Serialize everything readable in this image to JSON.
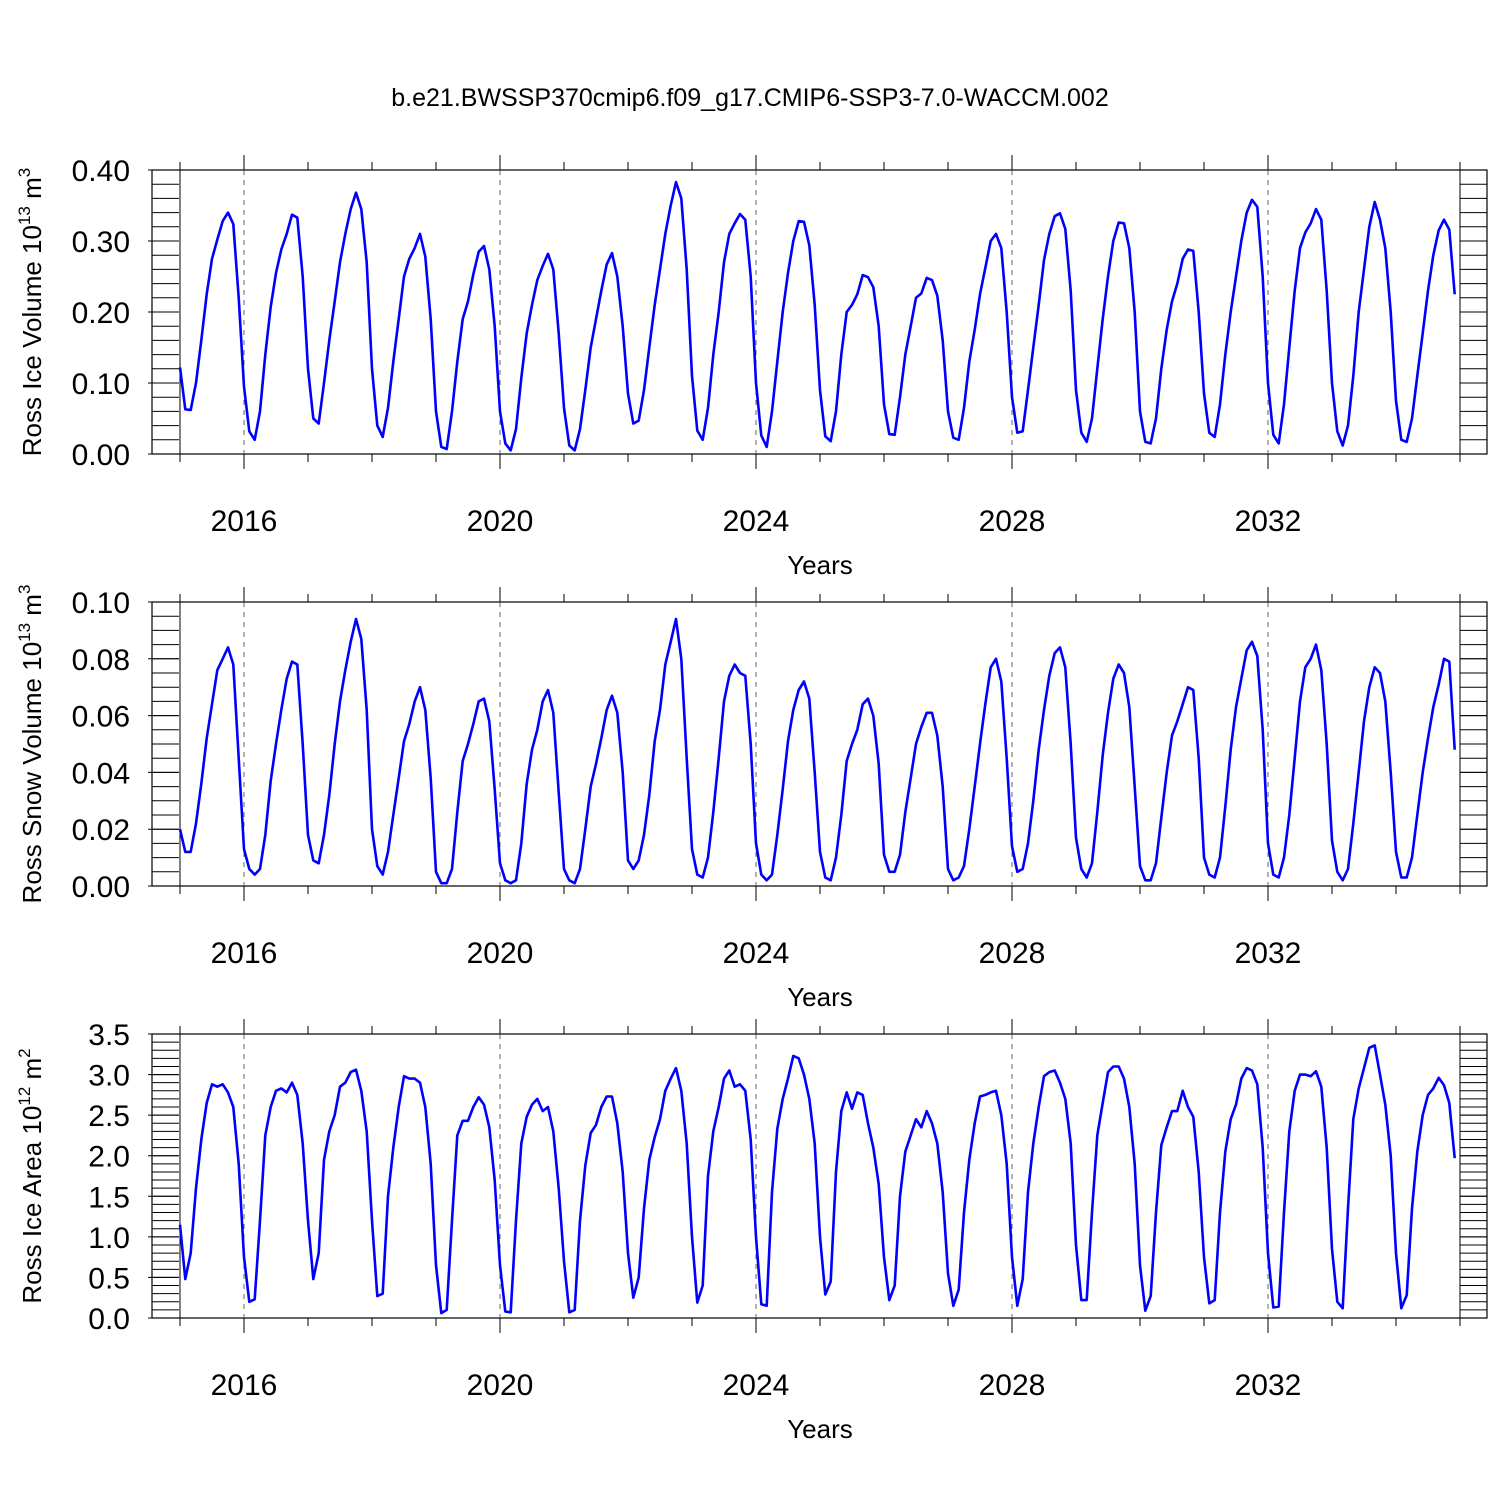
{
  "title": "b.e21.BWSSP370cmip6.f09_g17.CMIP6-SSP3-7.0-WACCM.002",
  "chart_data": [
    {
      "type": "line",
      "ylabel_main": "Ross Ice Volume 10",
      "ylabel_exp": "13",
      "ylabel_unit": " m",
      "ylabel_unit_exp": "3",
      "xlabel": "Years",
      "xlim": [
        2015.0,
        2035.0
      ],
      "ylim": [
        0.0,
        0.4
      ],
      "yticks": [
        0.0,
        0.1,
        0.2,
        0.3,
        0.4
      ],
      "ytick_labels": [
        "0.00",
        "0.10",
        "0.20",
        "0.30",
        "0.40"
      ],
      "yminor_step": 0.02,
      "xticks": [
        2016,
        2020,
        2024,
        2028,
        2032
      ],
      "xtick_labels": [
        "2016",
        "2020",
        "2024",
        "2028",
        "2032"
      ],
      "grid_x": true,
      "series": [
        {
          "color": "#0000ff",
          "start": 2015.0,
          "step": 0.08333333,
          "values": [
            0.122,
            0.063,
            0.062,
            0.1,
            0.16,
            0.225,
            0.275,
            0.302,
            0.328,
            0.34,
            0.324,
            0.22,
            0.095,
            0.032,
            0.02,
            0.06,
            0.14,
            0.207,
            0.255,
            0.288,
            0.31,
            0.337,
            0.333,
            0.25,
            0.12,
            0.05,
            0.043,
            0.1,
            0.16,
            0.215,
            0.27,
            0.31,
            0.345,
            0.368,
            0.345,
            0.27,
            0.12,
            0.04,
            0.024,
            0.065,
            0.13,
            0.19,
            0.25,
            0.275,
            0.29,
            0.31,
            0.278,
            0.19,
            0.06,
            0.01,
            0.007,
            0.06,
            0.13,
            0.19,
            0.215,
            0.253,
            0.285,
            0.293,
            0.26,
            0.18,
            0.06,
            0.015,
            0.005,
            0.035,
            0.107,
            0.17,
            0.21,
            0.245,
            0.265,
            0.282,
            0.26,
            0.17,
            0.065,
            0.012,
            0.005,
            0.035,
            0.09,
            0.15,
            0.19,
            0.23,
            0.267,
            0.283,
            0.25,
            0.18,
            0.085,
            0.043,
            0.047,
            0.09,
            0.15,
            0.21,
            0.26,
            0.31,
            0.35,
            0.383,
            0.36,
            0.26,
            0.11,
            0.033,
            0.02,
            0.065,
            0.14,
            0.2,
            0.27,
            0.31,
            0.325,
            0.338,
            0.33,
            0.25,
            0.1,
            0.026,
            0.01,
            0.06,
            0.13,
            0.2,
            0.255,
            0.3,
            0.328,
            0.327,
            0.294,
            0.21,
            0.09,
            0.025,
            0.018,
            0.06,
            0.14,
            0.2,
            0.21,
            0.225,
            0.252,
            0.249,
            0.235,
            0.18,
            0.07,
            0.028,
            0.027,
            0.08,
            0.14,
            0.18,
            0.22,
            0.226,
            0.248,
            0.245,
            0.223,
            0.16,
            0.06,
            0.023,
            0.02,
            0.065,
            0.13,
            0.175,
            0.225,
            0.262,
            0.3,
            0.31,
            0.29,
            0.2,
            0.08,
            0.03,
            0.032,
            0.09,
            0.15,
            0.21,
            0.273,
            0.31,
            0.335,
            0.339,
            0.317,
            0.23,
            0.09,
            0.03,
            0.017,
            0.05,
            0.12,
            0.19,
            0.25,
            0.3,
            0.326,
            0.325,
            0.29,
            0.2,
            0.06,
            0.017,
            0.015,
            0.05,
            0.12,
            0.175,
            0.215,
            0.24,
            0.275,
            0.288,
            0.286,
            0.2,
            0.085,
            0.03,
            0.024,
            0.07,
            0.14,
            0.2,
            0.25,
            0.3,
            0.34,
            0.358,
            0.348,
            0.25,
            0.1,
            0.027,
            0.015,
            0.07,
            0.15,
            0.23,
            0.29,
            0.312,
            0.325,
            0.345,
            0.33,
            0.23,
            0.1,
            0.032,
            0.012,
            0.04,
            0.11,
            0.2,
            0.26,
            0.32,
            0.355,
            0.33,
            0.29,
            0.2,
            0.075,
            0.02,
            0.017,
            0.05,
            0.11,
            0.17,
            0.23,
            0.28,
            0.315,
            0.33,
            0.316,
            0.225
          ]
        }
      ]
    },
    {
      "type": "line",
      "ylabel_main": "Ross Snow Volume 10",
      "ylabel_exp": "13",
      "ylabel_unit": " m",
      "ylabel_unit_exp": "3",
      "xlabel": "Years",
      "xlim": [
        2015.0,
        2035.0
      ],
      "ylim": [
        0.0,
        0.1
      ],
      "yticks": [
        0.0,
        0.02,
        0.04,
        0.06,
        0.08,
        0.1
      ],
      "ytick_labels": [
        "0.00",
        "0.02",
        "0.04",
        "0.06",
        "0.08",
        "0.10"
      ],
      "yminor_step": 0.005,
      "xticks": [
        2016,
        2020,
        2024,
        2028,
        2032
      ],
      "xtick_labels": [
        "2016",
        "2020",
        "2024",
        "2028",
        "2032"
      ],
      "grid_x": true,
      "series": [
        {
          "color": "#0000ff",
          "start": 2015.0,
          "step": 0.08333333,
          "values": [
            0.02,
            0.012,
            0.012,
            0.022,
            0.036,
            0.052,
            0.064,
            0.076,
            0.08,
            0.084,
            0.078,
            0.045,
            0.013,
            0.006,
            0.004,
            0.006,
            0.018,
            0.037,
            0.05,
            0.062,
            0.073,
            0.079,
            0.078,
            0.05,
            0.018,
            0.009,
            0.008,
            0.018,
            0.032,
            0.05,
            0.065,
            0.076,
            0.086,
            0.094,
            0.087,
            0.062,
            0.02,
            0.007,
            0.004,
            0.012,
            0.025,
            0.038,
            0.051,
            0.057,
            0.065,
            0.07,
            0.062,
            0.038,
            0.005,
            0.001,
            0.001,
            0.006,
            0.026,
            0.044,
            0.05,
            0.057,
            0.065,
            0.066,
            0.058,
            0.034,
            0.008,
            0.002,
            0.001,
            0.002,
            0.015,
            0.036,
            0.048,
            0.055,
            0.065,
            0.069,
            0.061,
            0.033,
            0.006,
            0.002,
            0.001,
            0.006,
            0.02,
            0.035,
            0.043,
            0.052,
            0.062,
            0.067,
            0.061,
            0.04,
            0.009,
            0.006,
            0.009,
            0.018,
            0.032,
            0.051,
            0.062,
            0.078,
            0.086,
            0.094,
            0.08,
            0.045,
            0.013,
            0.004,
            0.003,
            0.01,
            0.026,
            0.045,
            0.065,
            0.074,
            0.078,
            0.075,
            0.074,
            0.05,
            0.015,
            0.004,
            0.002,
            0.004,
            0.018,
            0.034,
            0.051,
            0.062,
            0.069,
            0.072,
            0.066,
            0.04,
            0.012,
            0.003,
            0.002,
            0.01,
            0.025,
            0.044,
            0.05,
            0.055,
            0.064,
            0.066,
            0.06,
            0.043,
            0.011,
            0.005,
            0.005,
            0.011,
            0.026,
            0.038,
            0.05,
            0.056,
            0.061,
            0.061,
            0.053,
            0.035,
            0.006,
            0.002,
            0.003,
            0.007,
            0.02,
            0.035,
            0.05,
            0.064,
            0.077,
            0.08,
            0.072,
            0.045,
            0.014,
            0.005,
            0.006,
            0.015,
            0.03,
            0.048,
            0.062,
            0.074,
            0.082,
            0.084,
            0.077,
            0.05,
            0.017,
            0.006,
            0.003,
            0.008,
            0.026,
            0.046,
            0.061,
            0.073,
            0.078,
            0.075,
            0.063,
            0.035,
            0.007,
            0.002,
            0.002,
            0.008,
            0.024,
            0.04,
            0.053,
            0.058,
            0.064,
            0.07,
            0.069,
            0.045,
            0.01,
            0.004,
            0.003,
            0.01,
            0.028,
            0.048,
            0.063,
            0.073,
            0.083,
            0.086,
            0.081,
            0.055,
            0.015,
            0.004,
            0.003,
            0.01,
            0.025,
            0.045,
            0.065,
            0.077,
            0.08,
            0.085,
            0.076,
            0.05,
            0.016,
            0.005,
            0.002,
            0.006,
            0.022,
            0.04,
            0.058,
            0.07,
            0.077,
            0.075,
            0.065,
            0.04,
            0.012,
            0.003,
            0.003,
            0.01,
            0.025,
            0.04,
            0.052,
            0.063,
            0.071,
            0.08,
            0.079,
            0.048
          ]
        }
      ]
    },
    {
      "type": "line",
      "ylabel_main": "Ross Ice Area 10",
      "ylabel_exp": "12",
      "ylabel_unit": " m",
      "ylabel_unit_exp": "2",
      "xlabel": "Years",
      "xlim": [
        2015.0,
        2035.0
      ],
      "ylim": [
        0.0,
        3.5
      ],
      "yticks": [
        0.0,
        0.5,
        1.0,
        1.5,
        2.0,
        2.5,
        3.0,
        3.5
      ],
      "ytick_labels": [
        "0.0",
        "0.5",
        "1.0",
        "1.5",
        "2.0",
        "2.5",
        "3.0",
        "3.5"
      ],
      "yminor_step": 0.1,
      "xticks": [
        2016,
        2020,
        2024,
        2028,
        2032
      ],
      "xtick_labels": [
        "2016",
        "2020",
        "2024",
        "2028",
        "2032"
      ],
      "grid_x": true,
      "series": [
        {
          "color": "#0000ff",
          "start": 2015.0,
          "step": 0.08333333,
          "values": [
            1.15,
            0.48,
            0.8,
            1.6,
            2.2,
            2.65,
            2.88,
            2.85,
            2.88,
            2.78,
            2.6,
            1.9,
            0.75,
            0.2,
            0.23,
            1.2,
            2.25,
            2.6,
            2.8,
            2.83,
            2.78,
            2.9,
            2.75,
            2.15,
            1.2,
            0.48,
            0.8,
            1.95,
            2.3,
            2.5,
            2.85,
            2.9,
            3.03,
            3.06,
            2.8,
            2.3,
            1.2,
            0.27,
            0.3,
            1.5,
            2.1,
            2.6,
            2.98,
            2.95,
            2.95,
            2.9,
            2.6,
            1.9,
            0.65,
            0.06,
            0.1,
            1.2,
            2.25,
            2.43,
            2.43,
            2.6,
            2.72,
            2.63,
            2.35,
            1.7,
            0.65,
            0.08,
            0.07,
            1.2,
            2.15,
            2.48,
            2.63,
            2.7,
            2.55,
            2.6,
            2.3,
            1.6,
            0.7,
            0.07,
            0.1,
            1.2,
            1.88,
            2.28,
            2.38,
            2.6,
            2.73,
            2.73,
            2.4,
            1.8,
            0.8,
            0.25,
            0.5,
            1.35,
            1.95,
            2.23,
            2.45,
            2.8,
            2.95,
            3.08,
            2.8,
            2.15,
            1.0,
            0.19,
            0.4,
            1.75,
            2.3,
            2.6,
            2.95,
            3.05,
            2.85,
            2.88,
            2.8,
            2.2,
            1.0,
            0.17,
            0.15,
            1.55,
            2.33,
            2.7,
            2.95,
            3.23,
            3.2,
            3.0,
            2.7,
            2.15,
            1.0,
            0.29,
            0.45,
            1.8,
            2.55,
            2.78,
            2.58,
            2.78,
            2.75,
            2.4,
            2.1,
            1.65,
            0.75,
            0.22,
            0.4,
            1.5,
            2.05,
            2.25,
            2.45,
            2.35,
            2.55,
            2.4,
            2.15,
            1.55,
            0.55,
            0.15,
            0.35,
            1.3,
            1.95,
            2.4,
            2.73,
            2.75,
            2.78,
            2.8,
            2.5,
            1.9,
            0.75,
            0.15,
            0.48,
            1.55,
            2.15,
            2.6,
            2.98,
            3.03,
            3.05,
            2.9,
            2.7,
            2.15,
            0.9,
            0.22,
            0.22,
            1.3,
            2.25,
            2.65,
            3.03,
            3.1,
            3.1,
            2.95,
            2.6,
            1.9,
            0.65,
            0.09,
            0.27,
            1.3,
            2.13,
            2.35,
            2.55,
            2.55,
            2.8,
            2.6,
            2.48,
            1.8,
            0.75,
            0.18,
            0.22,
            1.3,
            2.05,
            2.45,
            2.63,
            2.95,
            3.08,
            3.05,
            2.88,
            2.1,
            0.8,
            0.13,
            0.14,
            1.3,
            2.3,
            2.8,
            3.0,
            3.0,
            2.98,
            3.04,
            2.85,
            2.1,
            0.85,
            0.2,
            0.12,
            1.35,
            2.45,
            2.83,
            3.08,
            3.33,
            3.36,
            3.0,
            2.63,
            2.0,
            0.8,
            0.12,
            0.28,
            1.35,
            2.05,
            2.5,
            2.75,
            2.83,
            2.96,
            2.87,
            2.65,
            1.97
          ]
        }
      ]
    }
  ]
}
